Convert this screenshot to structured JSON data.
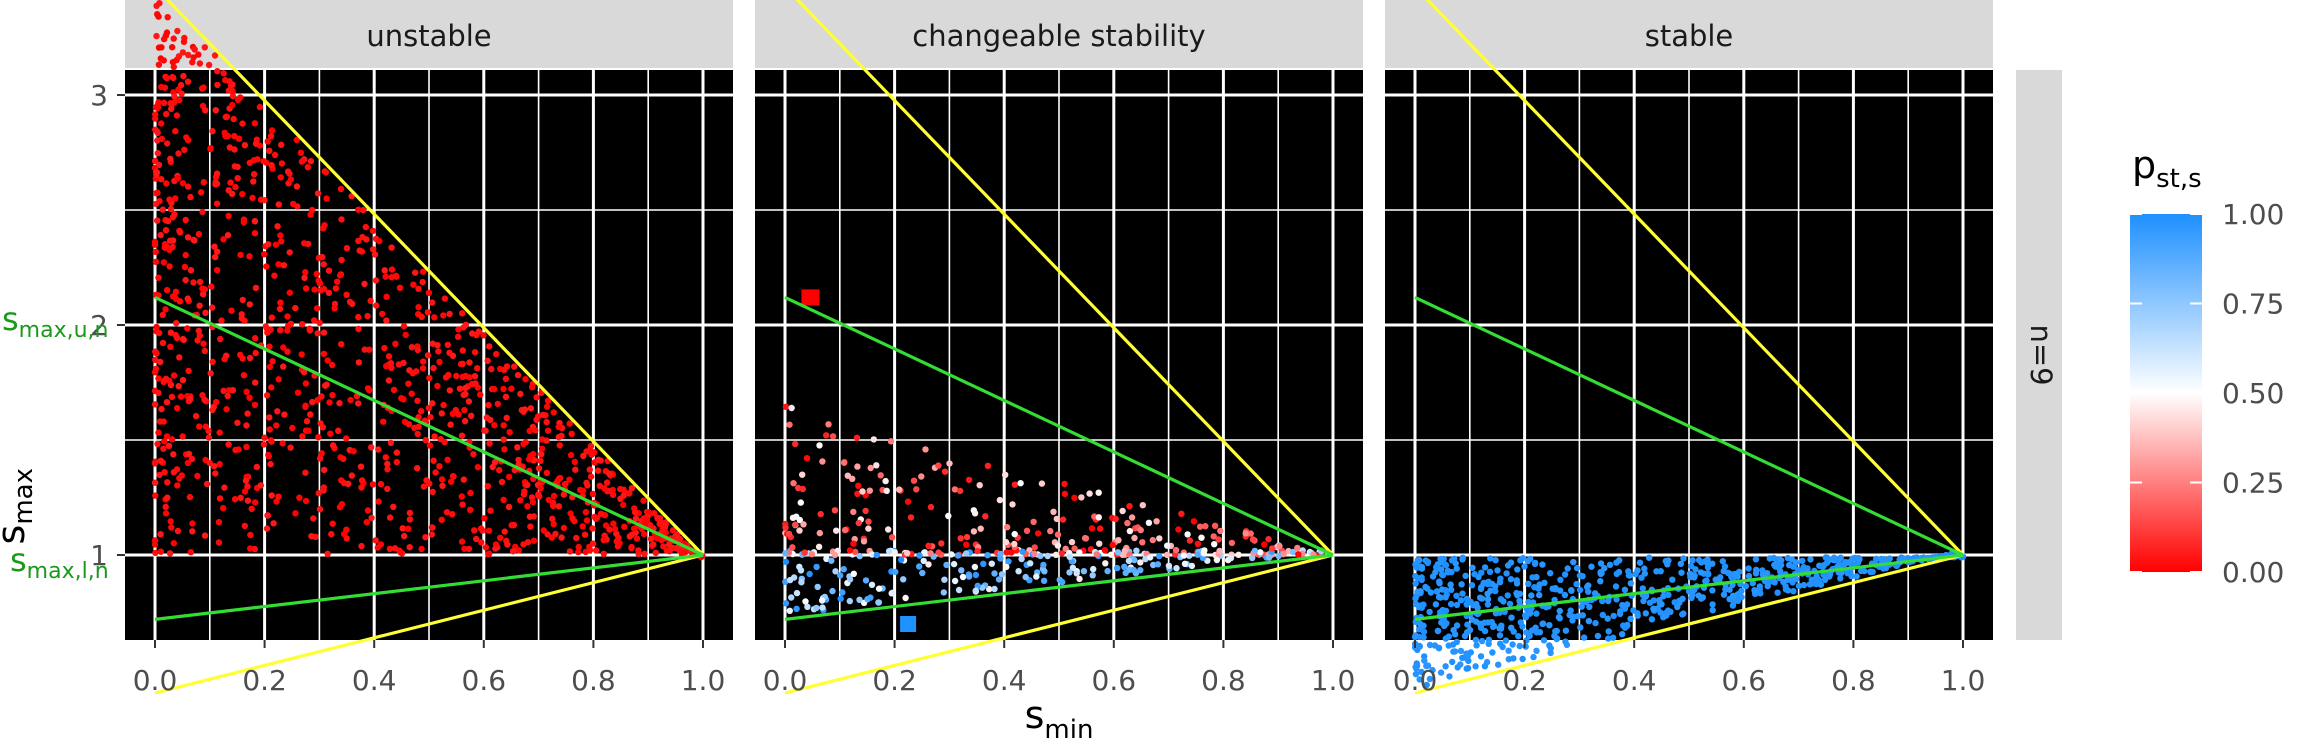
{
  "chart_data": {
    "type": "scatter",
    "facet_strip": "n=9",
    "xlabel": "s",
    "xlabel_sub": "min",
    "ylabel": "s",
    "ylabel_sub": "max",
    "xlim": [
      0,
      1
    ],
    "ylim": [
      0.25,
      3.5
    ],
    "x_ticks": [
      0,
      0.2,
      0.4,
      0.6,
      0.8,
      1
    ],
    "x_tick_labels": [
      "0.0",
      "0.2",
      "0.4",
      "0.6",
      "0.8",
      "1.0"
    ],
    "y_ticks": [
      1,
      2,
      3
    ],
    "y_tick_labels": [
      "1",
      "2",
      "3"
    ],
    "grid": true,
    "background": "#000000",
    "grid_color": "#ffffff",
    "boundary_line_color": "#ffff33",
    "threshold_line_color": "#33dd33",
    "lines": [
      {
        "role": "upper-boundary",
        "color": "#ffff33",
        "x": [
          0,
          1
        ],
        "y": [
          3.47,
          1
        ]
      },
      {
        "role": "lower-boundary",
        "color": "#ffff33",
        "x": [
          0,
          1
        ],
        "y": [
          0.4,
          1
        ]
      },
      {
        "role": "s_max_u_n",
        "color": "#33dd33",
        "x": [
          0,
          1
        ],
        "y": [
          2.12,
          1
        ]
      },
      {
        "role": "s_max_l_n",
        "color": "#33dd33",
        "x": [
          0,
          1
        ],
        "y": [
          0.72,
          1
        ]
      }
    ],
    "y_annotations": [
      {
        "text": "s",
        "sub": "max,u,n",
        "y": 2.12,
        "color": "#1a9a1a"
      },
      {
        "text": "s",
        "sub": "max,l,n",
        "y": 0.72,
        "color": "#1a9a1a"
      }
    ],
    "panels": [
      {
        "title": "unstable",
        "point_color_range": [
          0,
          0.05
        ],
        "region": "upper-boundary to 1",
        "approx_points": 3500
      },
      {
        "title": "changeable stability",
        "point_color_range": [
          0,
          1
        ],
        "region": "between green lines",
        "approx_points": 1400
      },
      {
        "title": "stable",
        "point_color_range": [
          0.97,
          1
        ],
        "region": "lower-boundary to 1",
        "approx_points": 2200
      }
    ],
    "legend": {
      "title": "p",
      "title_sub": "st,s",
      "placement": "right",
      "scale": "gradient",
      "low_color": "#ff0000",
      "mid_color": "#ffffff",
      "high_color": "#1e90ff",
      "ticks": [
        0,
        0.25,
        0.5,
        0.75,
        1
      ],
      "tick_labels": [
        "0.00",
        "0.25",
        "0.50",
        "0.75",
        "1.00"
      ]
    }
  }
}
